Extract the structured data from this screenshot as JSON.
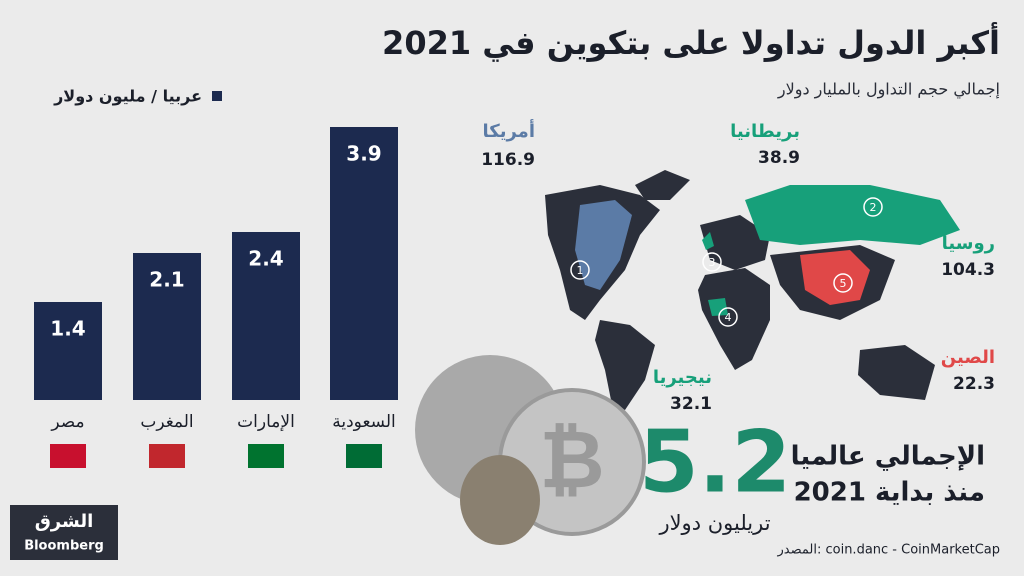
{
  "title": "أكبر الدول تداولا على بتكوين في 2021",
  "subtitle": "إجمالي حجم التداول بالمليار دولار",
  "chart_data": {
    "type": "bar",
    "legend": "عربيا / مليون دولار",
    "categories": [
      "مصر",
      "المغرب",
      "الإمارات",
      "السعودية"
    ],
    "values": [
      1.4,
      2.1,
      2.4,
      3.9
    ],
    "color": "#1c2a4f"
  },
  "map": {
    "countries": [
      {
        "name": "أمريكا",
        "value": 116.9,
        "rank": 1,
        "color": "#5b7ba6"
      },
      {
        "name": "روسيا",
        "value": 104.3,
        "rank": 2,
        "color": "#17a07a"
      },
      {
        "name": "بريطانيا",
        "value": 38.9,
        "rank": 3,
        "color": "#17a07a"
      },
      {
        "name": "نيجيريا",
        "value": 32.1,
        "rank": 4,
        "color": "#17a07a"
      },
      {
        "name": "الصين",
        "value": 22.3,
        "rank": 5,
        "color": "#e04848"
      }
    ]
  },
  "total": {
    "value": 5.2,
    "label_line1": "الإجمالي عالميا",
    "label_line2": "منذ بداية 2021",
    "unit": "تريليون دولار"
  },
  "source": "المصدر: coin.danc - CoinMarketCap",
  "logo": {
    "brand": "الشرق",
    "partner": "Bloomberg"
  }
}
